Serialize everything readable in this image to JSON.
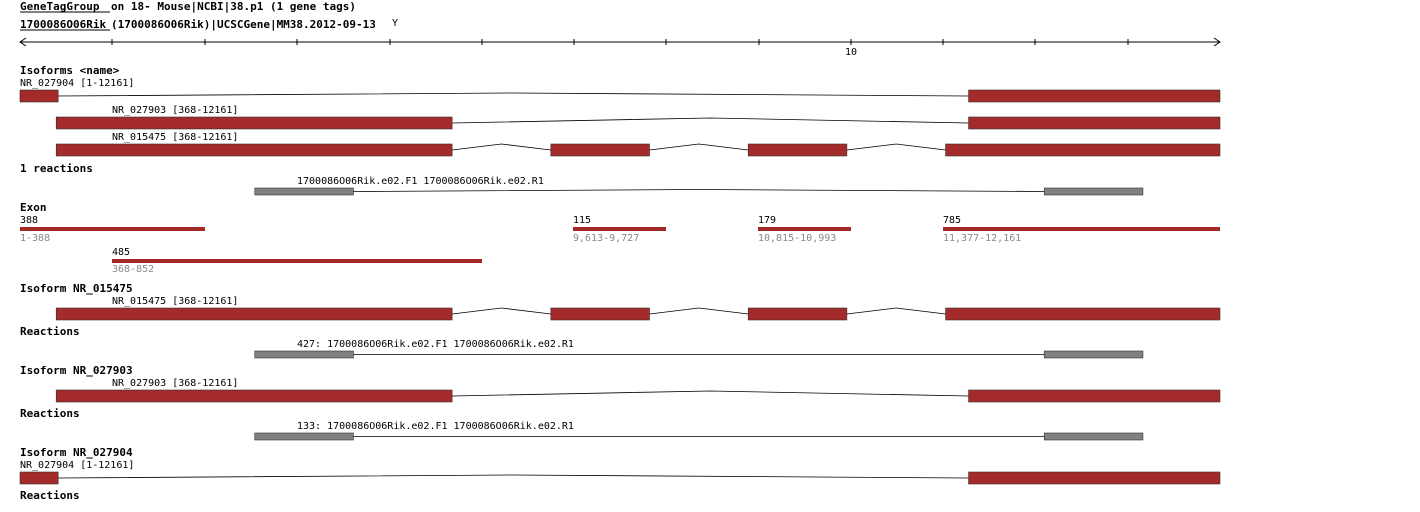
{
  "colors": {
    "exon": "#a52a2a",
    "reaction": "#808080",
    "line": "#000000",
    "grey_text": "#888888"
  },
  "header": {
    "group_link": "GeneTagGroup",
    "group_rest": " on 18- Mouse|NCBI|38.p1 (1 gene tags)",
    "gene_link": "1700086O06Rik",
    "gene_rest": "(1700086O06Rik)|UCSCGene|MM38.2012-09-13",
    "axis_label": "10"
  },
  "isoforms_title": "Isoforms <name>",
  "isoforms": [
    {
      "label": "NR_027904 [1-12161]",
      "exons": [
        [
          1,
          388
        ],
        [
          9613,
          12161
        ]
      ]
    },
    {
      "label": "NR_027903 [368-12161]",
      "exons": [
        [
          368,
          4380
        ],
        [
          9613,
          12161
        ]
      ]
    },
    {
      "label": "NR_015475 [368-12161]",
      "exons": [
        [
          368,
          4380
        ],
        [
          5380,
          6380
        ],
        [
          7380,
          8380
        ],
        [
          9380,
          12161
        ]
      ]
    }
  ],
  "reactions_title": "1 reactions",
  "reaction": {
    "label": "1700086O06Rik.e02.F1 1700086O06Rik.e02.R1",
    "exons": [
      [
        2380,
        3380
      ],
      [
        10380,
        11380
      ]
    ]
  },
  "exon_title": "Exon",
  "exons": [
    {
      "len": "388",
      "range": "1-388"
    },
    {
      "len": "115",
      "range": "9,613-9,727"
    },
    {
      "len": "179",
      "range": "10,815-10,993"
    },
    {
      "len": "785",
      "range": "11,377-12,161"
    },
    {
      "len": "485",
      "range": "368-852"
    }
  ],
  "sections": [
    {
      "title": "Isoform NR_015475",
      "isoform": "NR_015475 [368-12161]",
      "reactions_title": "Reactions",
      "reaction": "427: 1700086O06Rik.e02.F1 1700086O06Rik.e02.R1"
    },
    {
      "title": "Isoform NR_027903",
      "isoform": "NR_027903 [368-12161]",
      "reactions_title": "Reactions",
      "reaction": "133: 1700086O06Rik.e02.F1 1700086O06Rik.e02.R1"
    },
    {
      "title": "Isoform NR_027904",
      "isoform": "NR_027904 [1-12161]",
      "reactions_title": "Reactions"
    }
  ]
}
